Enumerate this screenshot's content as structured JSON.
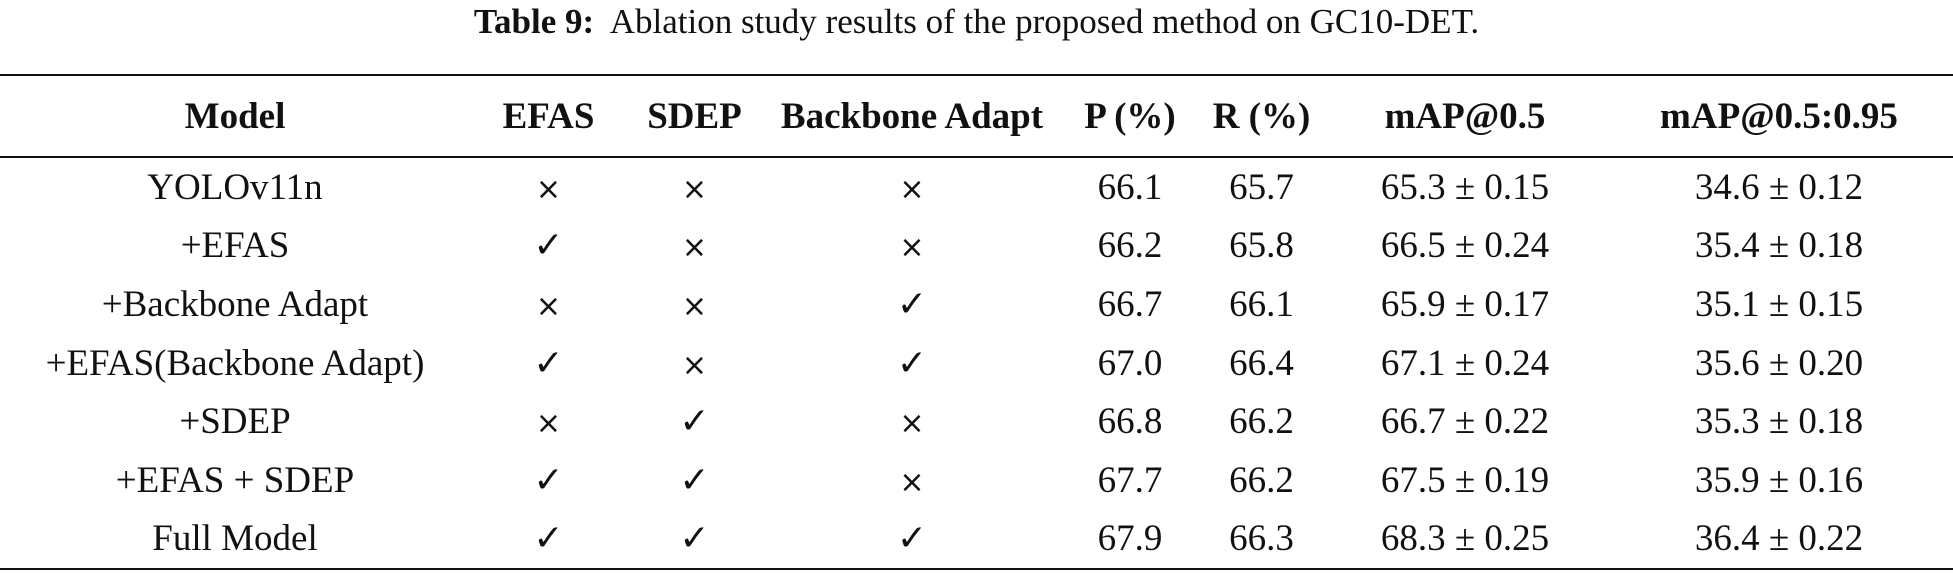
{
  "caption": {
    "label": "Table 9:",
    "text": "Ablation study results of the proposed method on GC10-DET."
  },
  "columns": [
    "Model",
    "EFAS",
    "SDEP",
    "Backbone Adapt",
    "P (%)",
    "R (%)",
    "mAP@0.5",
    "mAP@0.5:0.95"
  ],
  "symbols": {
    "yes": "✓",
    "no": "×"
  },
  "rows": [
    {
      "model": "YOLOv11n",
      "efas": "×",
      "sdep": "×",
      "backbone": "×",
      "p": "66.1",
      "r": "65.7",
      "map50": "65.3 ± 0.15",
      "map5095": "34.6 ± 0.12"
    },
    {
      "model": "+EFAS",
      "efas": "✓",
      "sdep": "×",
      "backbone": "×",
      "p": "66.2",
      "r": "65.8",
      "map50": "66.5 ± 0.24",
      "map5095": "35.4 ± 0.18"
    },
    {
      "model": "+Backbone Adapt",
      "efas": "×",
      "sdep": "×",
      "backbone": "✓",
      "p": "66.7",
      "r": "66.1",
      "map50": "65.9 ± 0.17",
      "map5095": "35.1 ± 0.15"
    },
    {
      "model": "+EFAS(Backbone Adapt)",
      "efas": "✓",
      "sdep": "×",
      "backbone": "✓",
      "p": "67.0",
      "r": "66.4",
      "map50": "67.1 ± 0.24",
      "map5095": "35.6 ± 0.20"
    },
    {
      "model": "+SDEP",
      "efas": "×",
      "sdep": "✓",
      "backbone": "×",
      "p": "66.8",
      "r": "66.2",
      "map50": "66.7 ± 0.22",
      "map5095": "35.3 ± 0.18"
    },
    {
      "model": "+EFAS + SDEP",
      "efas": "✓",
      "sdep": "✓",
      "backbone": "×",
      "p": "67.7",
      "r": "66.2",
      "map50": "67.5 ± 0.19",
      "map5095": "35.9 ± 0.16"
    },
    {
      "model": "Full Model",
      "efas": "✓",
      "sdep": "✓",
      "backbone": "✓",
      "p": "67.9",
      "r": "66.3",
      "map50": "68.3 ± 0.25",
      "map5095": "36.4 ± 0.22"
    }
  ]
}
